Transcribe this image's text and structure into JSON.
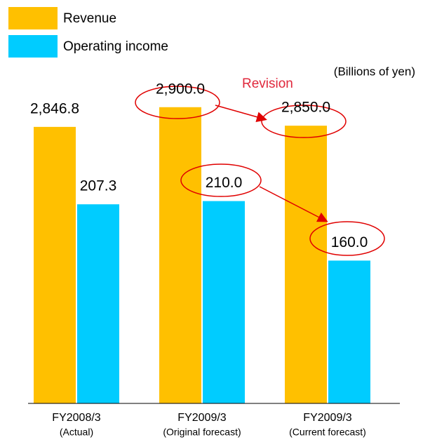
{
  "chart_data": {
    "type": "bar",
    "categories": [
      "FY2008/3",
      "FY2009/3",
      "FY2009/3"
    ],
    "category_notes": [
      "(Actual)",
      "(Original forecast)",
      "(Current forecast)"
    ],
    "series": [
      {
        "name": "Revenue",
        "color": "#ffc000",
        "values": [
          2846.8,
          2900.0,
          2850.0
        ],
        "value_labels": [
          "2,846.8",
          "2,900.0",
          "2,850.0"
        ]
      },
      {
        "name": "Operating income",
        "color": "#00ccff",
        "axis": "y2",
        "values": [
          207.3,
          210.0,
          160.0
        ],
        "value_labels": [
          "207.3",
          "210.0",
          "160.0"
        ]
      }
    ],
    "ylim": [
      2100,
      3000
    ],
    "y2lim": [
      40,
      320
    ],
    "unit_note": "(Billions of yen)",
    "annotation": "Revision"
  }
}
